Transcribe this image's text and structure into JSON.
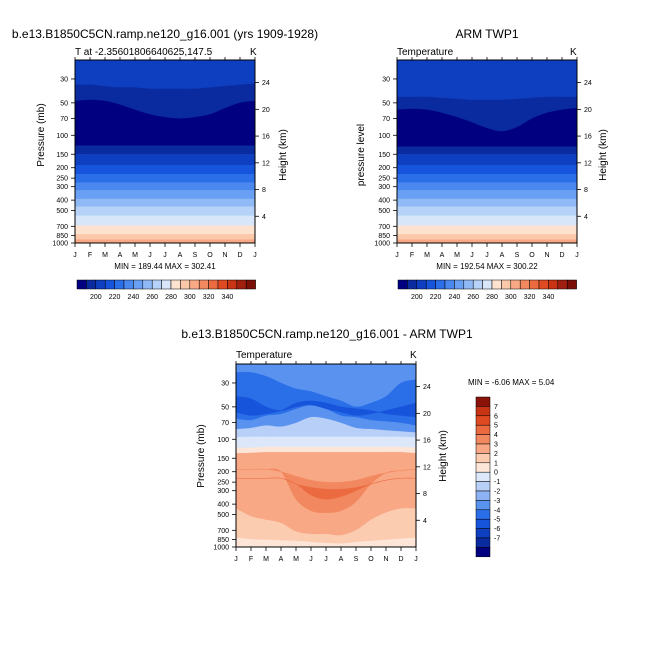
{
  "colors": {
    "abs_palette": [
      "#000080",
      "#0a2aa0",
      "#0d3fc0",
      "#1654dc",
      "#2a6ee8",
      "#4a88f0",
      "#6aa0f4",
      "#8fbaf6",
      "#b6d2f8",
      "#d8e6fa",
      "#fde2d0",
      "#fcc8aa",
      "#f8a884",
      "#f28860",
      "#ec6a40",
      "#e04a22",
      "#c83414",
      "#a02010",
      "#7a1008"
    ],
    "diff_palette": [
      "#000080",
      "#0a2aa0",
      "#0d3fc0",
      "#1654dc",
      "#2a6ee8",
      "#5a92f0",
      "#8cb2f4",
      "#b8cff8",
      "#dce8fa",
      "#fde6d8",
      "#fcccb0",
      "#f8a884",
      "#f28860",
      "#ec6a40",
      "#e04a22",
      "#c83414",
      "#8a1208"
    ]
  },
  "chart_data": [
    {
      "id": "model",
      "type": "contour",
      "header_title": "b.e13.B1850C5CN.ramp.ne120_g16.001 (yrs 1909-1928)",
      "left_string": "T at -2.35601806640625,147.5",
      "right_string": "K",
      "ylabel": "Pressure (mb)",
      "ylabel_right": "Height (km)",
      "stats": "MIN = 189.44 MAX = 302.41",
      "months": [
        "J",
        "F",
        "M",
        "A",
        "M",
        "J",
        "J",
        "A",
        "S",
        "O",
        "N",
        "D",
        "J"
      ],
      "pressure_ticks": [
        30,
        50,
        70,
        100,
        150,
        200,
        250,
        300,
        400,
        500,
        700,
        850,
        1000
      ],
      "height_ticks": [
        24,
        20,
        16,
        12,
        8,
        4
      ],
      "ylim_mb": [
        20,
        1000
      ],
      "boundaries": [
        {
          "p": [
            34,
            34,
            35,
            36,
            36,
            37,
            37,
            37,
            37,
            36,
            35,
            34,
            33
          ]
        },
        {
          "p": [
            48,
            47,
            48,
            52,
            58,
            64,
            68,
            70,
            68,
            64,
            56,
            50,
            48
          ]
        },
        {
          "p": [
            125,
            125,
            125,
            125,
            125,
            125,
            125,
            125,
            125,
            125,
            125,
            125,
            125
          ]
        },
        {
          "p": [
            150,
            150,
            150,
            150,
            150,
            150,
            150,
            150,
            150,
            150,
            150,
            150,
            150
          ]
        },
        {
          "p": [
            190,
            190,
            190,
            190,
            190,
            190,
            190,
            190,
            190,
            190,
            190,
            190,
            190
          ]
        },
        {
          "p": [
            230,
            230,
            230,
            230,
            230,
            230,
            230,
            230,
            230,
            230,
            230,
            230,
            230
          ]
        },
        {
          "p": [
            275,
            275,
            275,
            275,
            275,
            275,
            275,
            275,
            275,
            275,
            275,
            275,
            275
          ]
        },
        {
          "p": [
            325,
            325,
            325,
            325,
            325,
            325,
            325,
            325,
            325,
            325,
            325,
            325,
            325
          ]
        },
        {
          "p": [
            390,
            390,
            390,
            390,
            390,
            390,
            390,
            390,
            390,
            390,
            390,
            390,
            390
          ]
        },
        {
          "p": [
            460,
            460,
            460,
            460,
            460,
            460,
            460,
            460,
            460,
            460,
            460,
            460,
            460
          ]
        },
        {
          "p": [
            560,
            560,
            560,
            560,
            560,
            560,
            560,
            560,
            560,
            560,
            560,
            560,
            560
          ]
        },
        {
          "p": [
            690,
            690,
            690,
            690,
            690,
            690,
            690,
            690,
            690,
            690,
            690,
            690,
            690
          ]
        },
        {
          "p": [
            830,
            830,
            830,
            830,
            830,
            830,
            830,
            830,
            830,
            830,
            830,
            830,
            830
          ]
        },
        {
          "p": [
            930,
            930,
            930,
            930,
            930,
            930,
            930,
            930,
            930,
            930,
            930,
            930,
            930
          ]
        }
      ],
      "band_colors": [
        2,
        1,
        0,
        1,
        2,
        3,
        4,
        5,
        6,
        7,
        8,
        9,
        10,
        11,
        12
      ]
    },
    {
      "id": "obs",
      "type": "contour",
      "header_title": "ARM TWP1",
      "left_string": "Temperature",
      "right_string": "K",
      "ylabel": "pressure level",
      "ylabel_right": "Height (km)",
      "stats": "MIN = 192.54 MAX = 300.22",
      "months": [
        "J",
        "F",
        "M",
        "A",
        "M",
        "J",
        "J",
        "A",
        "S",
        "O",
        "N",
        "D",
        "J"
      ],
      "pressure_ticks": [
        30,
        50,
        70,
        100,
        150,
        200,
        250,
        300,
        400,
        500,
        700,
        850,
        1000
      ],
      "height_ticks": [
        24,
        20,
        16,
        12,
        8,
        4
      ],
      "ylim_mb": [
        20,
        1000
      ],
      "boundaries": [
        {
          "p": [
            44,
            44,
            44,
            45,
            46,
            47,
            47,
            47,
            46,
            45,
            44,
            44,
            44
          ]
        },
        {
          "p": [
            58,
            57,
            58,
            62,
            68,
            76,
            86,
            92,
            84,
            70,
            62,
            58,
            56
          ]
        },
        {
          "p": [
            128,
            128,
            128,
            128,
            128,
            128,
            128,
            128,
            128,
            128,
            128,
            128,
            128
          ]
        },
        {
          "p": [
            150,
            150,
            150,
            150,
            150,
            150,
            150,
            150,
            150,
            150,
            150,
            150,
            150
          ]
        },
        {
          "p": [
            190,
            190,
            190,
            190,
            190,
            190,
            190,
            190,
            190,
            190,
            190,
            190,
            190
          ]
        },
        {
          "p": [
            230,
            230,
            230,
            230,
            230,
            230,
            230,
            230,
            230,
            230,
            230,
            230,
            230
          ]
        },
        {
          "p": [
            275,
            275,
            275,
            275,
            275,
            275,
            275,
            275,
            275,
            275,
            275,
            275,
            275
          ]
        },
        {
          "p": [
            325,
            325,
            325,
            325,
            325,
            325,
            325,
            325,
            325,
            325,
            325,
            325,
            325
          ]
        },
        {
          "p": [
            390,
            390,
            390,
            390,
            390,
            390,
            390,
            390,
            390,
            390,
            390,
            390,
            390
          ]
        },
        {
          "p": [
            460,
            460,
            460,
            460,
            460,
            460,
            460,
            460,
            460,
            460,
            460,
            460,
            460
          ]
        },
        {
          "p": [
            560,
            560,
            560,
            560,
            560,
            560,
            560,
            560,
            560,
            560,
            560,
            560,
            560
          ]
        },
        {
          "p": [
            690,
            690,
            690,
            690,
            690,
            690,
            690,
            690,
            690,
            690,
            690,
            690,
            690
          ]
        },
        {
          "p": [
            830,
            830,
            830,
            830,
            830,
            830,
            830,
            830,
            830,
            830,
            830,
            830,
            830
          ]
        },
        {
          "p": [
            930,
            930,
            930,
            930,
            930,
            930,
            930,
            930,
            930,
            930,
            930,
            930,
            930
          ]
        }
      ],
      "band_colors": [
        2,
        1,
        0,
        1,
        2,
        3,
        4,
        5,
        6,
        7,
        8,
        9,
        10,
        11,
        12
      ]
    },
    {
      "id": "diff",
      "type": "contour",
      "header_title": "b.e13.B1850C5CN.ramp.ne120_g16.001 - ARM TWP1",
      "left_string": "Temperature",
      "right_string": "K",
      "ylabel": "Pressure (mb)",
      "ylabel_right": "Height (km)",
      "stats": "MIN = -6.06 MAX =    5.04",
      "months": [
        "J",
        "F",
        "M",
        "A",
        "M",
        "J",
        "J",
        "A",
        "S",
        "O",
        "N",
        "D",
        "J"
      ],
      "pressure_ticks": [
        30,
        50,
        70,
        100,
        150,
        200,
        250,
        300,
        400,
        500,
        700,
        850,
        1000
      ],
      "height_ticks": [
        24,
        20,
        16,
        12,
        8,
        4
      ],
      "ylim_mb": [
        20,
        1000
      ],
      "bands": [
        {
          "color": 7,
          "top": [
            20,
            20,
            20,
            20,
            20,
            20,
            20,
            20,
            20,
            20,
            20,
            20,
            20
          ],
          "bottom": [
            1000,
            1000,
            1000,
            1000,
            1000,
            1000,
            1000,
            1000,
            1000,
            1000,
            1000,
            1000,
            1000
          ]
        },
        {
          "color": 5,
          "top": [
            20,
            20,
            20,
            20,
            20,
            20,
            20,
            20,
            20,
            20,
            20,
            20,
            20
          ],
          "bottom": [
            80,
            78,
            74,
            76,
            70,
            62,
            64,
            70,
            78,
            80,
            82,
            84,
            86
          ]
        },
        {
          "color": 4,
          "top": [
            24,
            24,
            26,
            30,
            34,
            36,
            40,
            44,
            50,
            46,
            40,
            30,
            28
          ],
          "bottom": [
            64,
            66,
            60,
            58,
            52,
            48,
            52,
            60,
            62,
            66,
            68,
            70,
            74
          ]
        },
        {
          "color": 3,
          "top": [
            40,
            42,
            50,
            54,
            50,
            48,
            52,
            56,
            60,
            58,
            54,
            50,
            46
          ],
          "bottom": [
            56,
            60,
            58,
            54,
            46,
            44,
            46,
            50,
            52,
            54,
            58,
            60,
            62
          ]
        },
        {
          "color": 8,
          "top": [
            96,
            95,
            95,
            95,
            95,
            95,
            95,
            95,
            95,
            95,
            95,
            95,
            96
          ],
          "bottom": [
            120,
            120,
            118,
            118,
            118,
            118,
            118,
            118,
            118,
            118,
            118,
            118,
            120
          ]
        },
        {
          "color": 9,
          "top": [
            120,
            120,
            118,
            118,
            118,
            118,
            118,
            118,
            118,
            118,
            118,
            118,
            120
          ],
          "bottom": [
            135,
            134,
            132,
            132,
            132,
            132,
            132,
            132,
            132,
            132,
            132,
            132,
            135
          ]
        },
        {
          "color": 11,
          "top": [
            135,
            134,
            132,
            132,
            132,
            132,
            132,
            132,
            132,
            132,
            132,
            132,
            135
          ],
          "bottom": [
            440,
            520,
            560,
            600,
            720,
            760,
            760,
            780,
            700,
            560,
            480,
            440,
            440
          ]
        },
        {
          "color": 10,
          "top": [
            440,
            520,
            560,
            600,
            720,
            760,
            760,
            780,
            700,
            560,
            480,
            440,
            440
          ],
          "bottom": [
            820,
            850,
            860,
            870,
            880,
            900,
            920,
            930,
            900,
            880,
            860,
            840,
            820
          ]
        },
        {
          "color": 12,
          "top": [
            190,
            190,
            190,
            200,
            220,
            240,
            250,
            250,
            240,
            220,
            205,
            195,
            190
          ],
          "bottom": [
            190,
            190,
            190,
            200,
            360,
            460,
            480,
            460,
            380,
            260,
            205,
            195,
            190
          ]
        },
        {
          "color": 13,
          "top": [
            230,
            230,
            230,
            230,
            260,
            280,
            290,
            290,
            280,
            260,
            240,
            230,
            230
          ],
          "bottom": [
            230,
            230,
            230,
            230,
            260,
            330,
            360,
            340,
            300,
            260,
            240,
            230,
            230
          ]
        },
        {
          "color": 9,
          "top": [
            820,
            850,
            860,
            870,
            880,
            900,
            920,
            930,
            900,
            880,
            860,
            840,
            820
          ],
          "bottom": [
            1000,
            1000,
            1000,
            1000,
            1000,
            1000,
            1000,
            1000,
            1000,
            1000,
            1000,
            1000,
            1000
          ]
        }
      ],
      "legend_labels": [
        "7",
        "6",
        "5",
        "4",
        "3",
        "2",
        "1",
        "0",
        "-1",
        "-2",
        "-3",
        "-4",
        "-5",
        "-6",
        "-7"
      ]
    }
  ],
  "abs_colorbar": {
    "labels": [
      "200",
      "220",
      "240",
      "260",
      "280",
      "300",
      "320",
      "340"
    ]
  }
}
